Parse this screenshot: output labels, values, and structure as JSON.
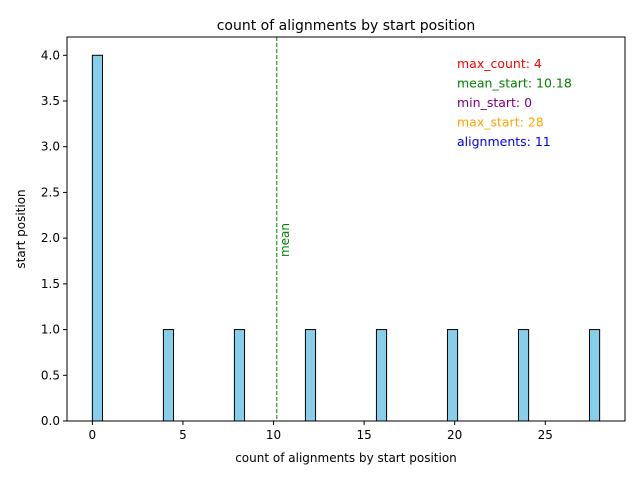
{
  "chart_data": {
    "type": "bar",
    "title": "count of alignments by start position",
    "xlabel": "count of alignments by start position",
    "ylabel": "start position",
    "xlim": [
      -1.4,
      29.4
    ],
    "ylim": [
      0,
      4.2
    ],
    "xticks": [
      0,
      5,
      10,
      15,
      20,
      25
    ],
    "xtick_labels": [
      "0",
      "5",
      "10",
      "15",
      "20",
      "25"
    ],
    "yticks": [
      0,
      0.5,
      1,
      1.5,
      2,
      2.5,
      3,
      3.5,
      4
    ],
    "ytick_labels": [
      "0.0",
      "0.5",
      "1.0",
      "1.5",
      "2.0",
      "2.5",
      "3.0",
      "3.5",
      "4.0"
    ],
    "bar_width": 0.56,
    "bars": [
      {
        "x": 0.28,
        "value": 4
      },
      {
        "x": 4.2,
        "value": 1
      },
      {
        "x": 8.12,
        "value": 1
      },
      {
        "x": 12.04,
        "value": 1
      },
      {
        "x": 15.96,
        "value": 1
      },
      {
        "x": 19.88,
        "value": 1
      },
      {
        "x": 23.8,
        "value": 1
      },
      {
        "x": 27.72,
        "value": 1
      }
    ],
    "bar_color": "#87CEEB",
    "bar_edge_color": "#000000",
    "mean_line": {
      "x": 10.18,
      "label": "mean",
      "color": "#008000"
    },
    "annotations": [
      {
        "text": "max_count: 4",
        "color": "#ff0000"
      },
      {
        "text": "mean_start: 10.18",
        "color": "#008000"
      },
      {
        "text": "min_start: 0",
        "color": "#800080"
      },
      {
        "text": "max_start: 28",
        "color": "#ffa500"
      },
      {
        "text": "alignments: 11",
        "color": "#0000ff"
      }
    ]
  }
}
